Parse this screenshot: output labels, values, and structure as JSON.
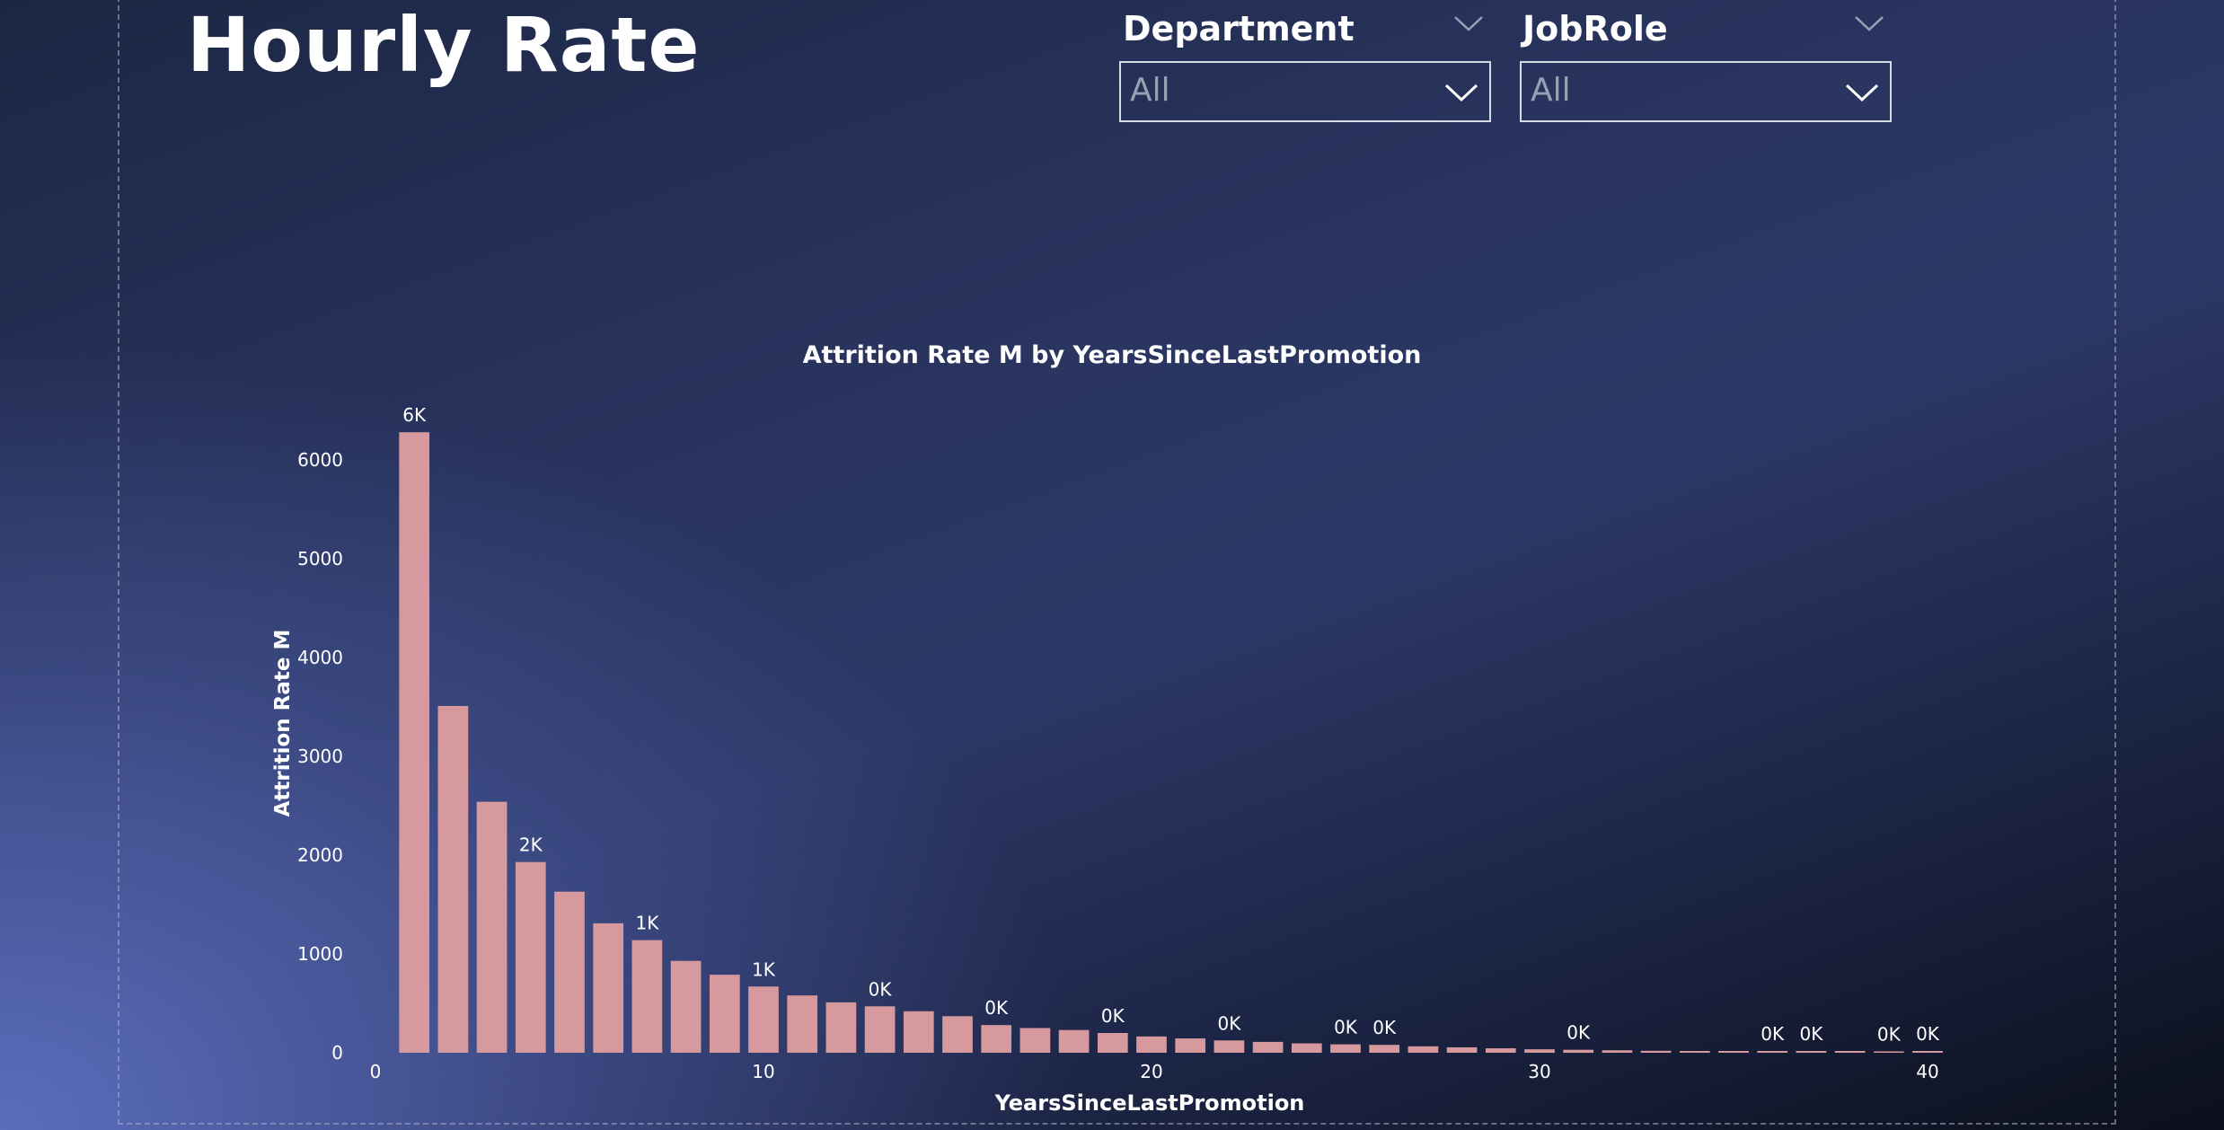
{
  "page": {
    "title": "Hourly Rate"
  },
  "filters": {
    "department": {
      "label": "Department",
      "value": "All"
    },
    "jobrole": {
      "label": "JobRole",
      "value": "All"
    }
  },
  "colors": {
    "bar": "#d69a9e",
    "text": "#ffffff"
  },
  "chart_data": {
    "type": "bar",
    "title": "Attrition Rate M by YearsSinceLastPromotion",
    "xlabel": "YearsSinceLastPromotion",
    "ylabel": "Attrition Rate M",
    "x": [
      1,
      2,
      3,
      4,
      5,
      6,
      7,
      8,
      9,
      10,
      11,
      12,
      13,
      14,
      15,
      16,
      17,
      18,
      19,
      20,
      21,
      22,
      23,
      24,
      25,
      26,
      27,
      28,
      29,
      30,
      31,
      32,
      33,
      34,
      35,
      36,
      37,
      38,
      39,
      40
    ],
    "values": [
      6280,
      3510,
      2540,
      1930,
      1630,
      1310,
      1140,
      930,
      790,
      670,
      580,
      510,
      470,
      420,
      370,
      280,
      250,
      230,
      200,
      165,
      145,
      125,
      110,
      95,
      85,
      80,
      65,
      55,
      45,
      35,
      30,
      25,
      20,
      15,
      12,
      15,
      15,
      10,
      0,
      10
    ],
    "data_labels": [
      "6K",
      "",
      "",
      "2K",
      "",
      "",
      "1K",
      "",
      "",
      "1K",
      "",
      "",
      "0K",
      "",
      "",
      "0K",
      "",
      "",
      "0K",
      "",
      "",
      "0K",
      "",
      "",
      "0K",
      "0K",
      "",
      "",
      "",
      "",
      "0K",
      "",
      "",
      "",
      "",
      "0K",
      "0K",
      "",
      "0K",
      "0K"
    ],
    "xlim": [
      0,
      40
    ],
    "ylim": [
      0,
      6500
    ],
    "xticks": [
      0,
      10,
      20,
      30,
      40
    ],
    "yticks": [
      0,
      1000,
      2000,
      3000,
      4000,
      5000,
      6000
    ],
    "grid": false,
    "legend": "none"
  }
}
